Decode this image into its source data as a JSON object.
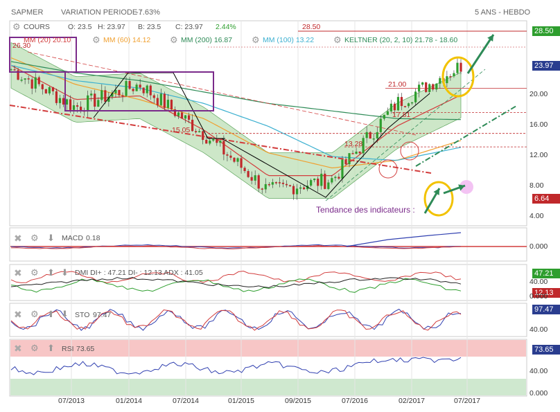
{
  "header": {
    "ticker": "SAPMER",
    "variation_label": "VARIATION PERIODE :",
    "variation_value": "-7.63%",
    "timeframe": "5 ANS - HEBDO"
  },
  "quote": {
    "cours_label": "COURS",
    "open": "O: 23.5",
    "high": "H: 23.97",
    "low": "B: 23.5",
    "close": "C: 23.97",
    "change": "2.44%",
    "level_2850": "28.50"
  },
  "indicators_legend": {
    "mm20": "MM (20) 20.10",
    "mm60": "MM (60) 14.12",
    "mm200": "MM (200) 16.87",
    "mm100": "MM (100) 13.22",
    "keltner": "KELTNER (20, 2, 10) 21.78 - 18.60"
  },
  "annotations": {
    "top_left": "26.30",
    "level_21": "21.00",
    "level_1781": "17.81",
    "level_1505": "15.05",
    "level_1328": "13.28",
    "trend_text": "Tendance des indicateurs :"
  },
  "price_axis": {
    "ticks": [
      "20.00",
      "16.00",
      "12.00",
      "8.00",
      "4.00"
    ],
    "tag_high": "28.50",
    "tag_last": "23.97",
    "tag_low": "6.64"
  },
  "macd": {
    "label": "MACD",
    "value": "0.18",
    "tick": "0.000"
  },
  "dmi": {
    "label": "DMI DI+ : 47.21 DI- : 12.13 ADX : 41.05",
    "ticks": [
      "40.00",
      "0.000"
    ],
    "tag_plus": "47.21",
    "tag_minus": "12.13"
  },
  "sto": {
    "label": "STO",
    "value": "97.47",
    "tick": "40.00",
    "tag": "97.47"
  },
  "rsi": {
    "label": "RSI",
    "value": "73.65",
    "ticks": [
      "40.00",
      "0.000"
    ],
    "tag": "73.65"
  },
  "x_axis": [
    "07/2013",
    "01/2014",
    "07/2014",
    "01/2015",
    "09/2015",
    "07/2016",
    "02/2017",
    "07/2017"
  ],
  "colors": {
    "up": "#2e9e2e",
    "down": "#c0282b",
    "mm20": "#d23c3c",
    "mm60": "#f0a030",
    "mm200": "#2e8b57",
    "mm100": "#3cb0d0",
    "band": "#b8ddb0",
    "purple": "#7a2a8a"
  },
  "chart_data": {
    "type": "line",
    "title": "SAPMER",
    "x": [
      "07/2013",
      "01/2014",
      "07/2014",
      "01/2015",
      "09/2015",
      "07/2016",
      "02/2017",
      "07/2017"
    ],
    "series": [
      {
        "name": "COURS",
        "values": [
          23.5,
          18.5,
          21.5,
          15.0,
          7.5,
          9.0,
          19.0,
          23.97
        ]
      },
      {
        "name": "MM (20)",
        "values": [
          24.0,
          19.5,
          20.0,
          15.5,
          9.5,
          9.5,
          16.0,
          20.1
        ]
      },
      {
        "name": "MM (60)",
        "values": [
          25.0,
          21.5,
          19.5,
          17.0,
          12.5,
          10.5,
          11.5,
          14.12
        ]
      },
      {
        "name": "MM (100)",
        "values": [
          24.0,
          22.0,
          21.0,
          19.0,
          16.0,
          12.0,
          11.5,
          13.22
        ]
      },
      {
        "name": "MM (200)",
        "values": [
          24.5,
          23.0,
          22.0,
          20.5,
          19.0,
          18.0,
          17.0,
          16.87
        ]
      }
    ],
    "ylim": [
      4,
      28.5
    ],
    "horizontal_levels": [
      28.5,
      21.0,
      17.81,
      15.05,
      13.28
    ]
  }
}
